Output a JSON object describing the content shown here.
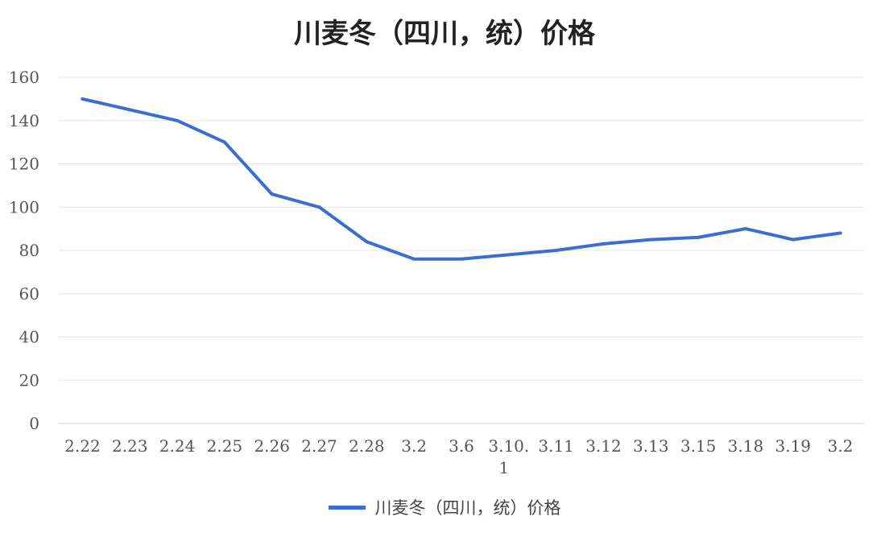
{
  "chart_data": {
    "type": "line",
    "title": "川麦冬（四川，统）价格",
    "xlabel": "",
    "ylabel": "",
    "ylim": [
      0,
      160
    ],
    "yticks": [
      "0",
      "20",
      "40",
      "60",
      "80",
      "100",
      "120",
      "140",
      "160"
    ],
    "categories": [
      "2.22",
      "2.23",
      "2.24",
      "2.25",
      "2.26",
      "2.27",
      "2.28",
      "3.2",
      "3.6",
      "3.10.1",
      "3.11",
      "3.12",
      "3.13",
      "3.15",
      "3.18",
      "3.19",
      "3.2"
    ],
    "category_display": [
      [
        "2.22"
      ],
      [
        "2.23"
      ],
      [
        "2.24"
      ],
      [
        "2.25"
      ],
      [
        "2.26"
      ],
      [
        "2.27"
      ],
      [
        "2.28"
      ],
      [
        "3.2"
      ],
      [
        "3.6"
      ],
      [
        "3.10.",
        "1"
      ],
      [
        "3.11"
      ],
      [
        "3.12"
      ],
      [
        "3.13"
      ],
      [
        "3.15"
      ],
      [
        "3.18"
      ],
      [
        "3.19"
      ],
      [
        "3.2"
      ]
    ],
    "series": [
      {
        "name": "川麦冬（四川，统）价格",
        "color": "#3a6fd0",
        "values": [
          150,
          145,
          140,
          130,
          106,
          100,
          84,
          76,
          76,
          78,
          80,
          83,
          85,
          86,
          90,
          85,
          88
        ]
      }
    ],
    "grid": true,
    "legend_position": "bottom"
  }
}
